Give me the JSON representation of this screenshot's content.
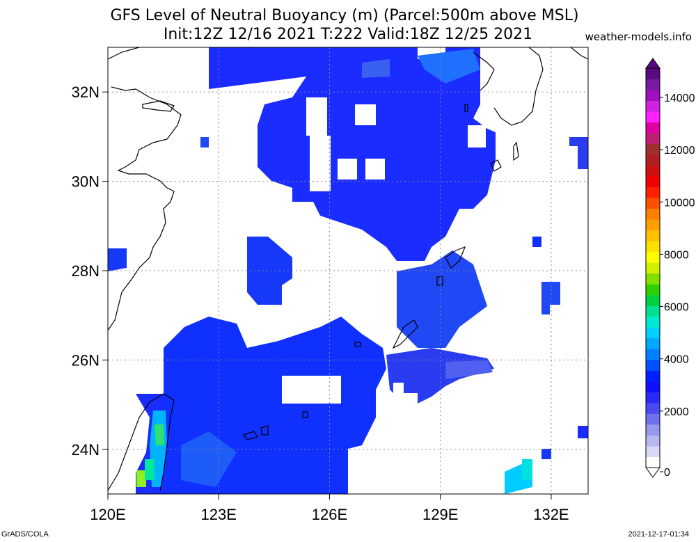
{
  "title": {
    "line1": "GFS Level of Neutral Buoyancy (m) (Parcel:500m above MSL)",
    "line2": "Init:12Z 12/16 2021 T:222 Valid:18Z 12/25 2021"
  },
  "credit": "weather-models.info",
  "footer": {
    "left": "GrADS/COLA",
    "right": "2021-12-17-01:34"
  },
  "map": {
    "lon_range": [
      120,
      133
    ],
    "lat_range": [
      23,
      33
    ],
    "x_ticks": [
      {
        "value": 120,
        "label": "120E"
      },
      {
        "value": 123,
        "label": "123E"
      },
      {
        "value": 126,
        "label": "126E"
      },
      {
        "value": 129,
        "label": "129E"
      },
      {
        "value": 132,
        "label": "132E"
      }
    ],
    "y_ticks": [
      {
        "value": 24,
        "label": "24N"
      },
      {
        "value": 26,
        "label": "26N"
      },
      {
        "value": 28,
        "label": "28N"
      },
      {
        "value": 30,
        "label": "30N"
      },
      {
        "value": 32,
        "label": "32N"
      }
    ],
    "grid": true,
    "coastline_color": "#000000"
  },
  "colorbar": {
    "ticks": [
      {
        "value": 0,
        "label": "0"
      },
      {
        "value": 2000,
        "label": "2000"
      },
      {
        "value": 4000,
        "label": "4000"
      },
      {
        "value": 6000,
        "label": "6000"
      },
      {
        "value": 8000,
        "label": "8000"
      },
      {
        "value": 10000,
        "label": "10000"
      },
      {
        "value": 12000,
        "label": "12000"
      },
      {
        "value": 14000,
        "label": "14000"
      }
    ],
    "colors": [
      "#ffffff",
      "#d8d8f8",
      "#b8b8f0",
      "#9898ec",
      "#7070f0",
      "#4a4af4",
      "#2a2af8",
      "#1010ff",
      "#0020ff",
      "#0050ff",
      "#0080ff",
      "#00a8ff",
      "#00d0ff",
      "#00e8d0",
      "#00e090",
      "#00d040",
      "#30d000",
      "#80e000",
      "#d0f000",
      "#ffff00",
      "#ffe000",
      "#ffc000",
      "#ffa000",
      "#ff8000",
      "#ff5000",
      "#ff2000",
      "#f00000",
      "#d01010",
      "#b02020",
      "#a03030",
      "#c02070",
      "#e000a0",
      "#ff20ff",
      "#d020e0",
      "#a010c0",
      "#7a1aa0",
      "#5a0a80"
    ]
  }
}
